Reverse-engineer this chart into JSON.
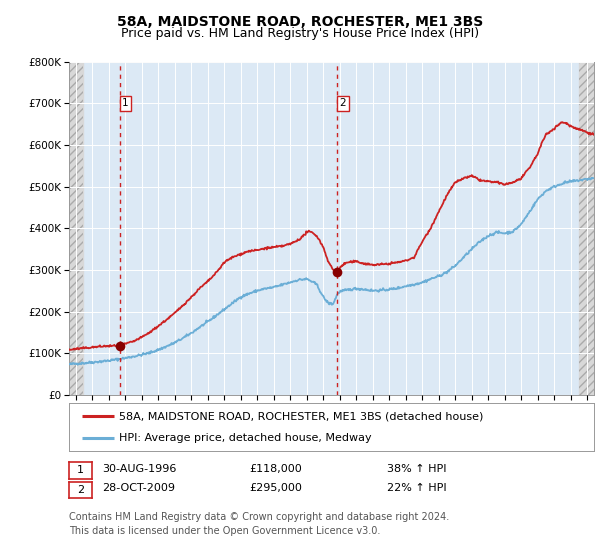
{
  "title": "58A, MAIDSTONE ROAD, ROCHESTER, ME1 3BS",
  "subtitle": "Price paid vs. HM Land Registry's House Price Index (HPI)",
  "ylim": [
    0,
    800000
  ],
  "yticks": [
    0,
    100000,
    200000,
    300000,
    400000,
    500000,
    600000,
    700000,
    800000
  ],
  "ytick_labels": [
    "£0",
    "£100K",
    "£200K",
    "£300K",
    "£400K",
    "£500K",
    "£600K",
    "£700K",
    "£800K"
  ],
  "xlim_start": 1993.6,
  "xlim_end": 2025.4,
  "background_color": "#ffffff",
  "plot_bg_color": "#dce9f5",
  "hatch_bg_color": "#d8d8d8",
  "grid_color": "#ffffff",
  "hpi_line_color": "#6baed6",
  "price_line_color": "#cc2222",
  "marker_color": "#880000",
  "sale1_x": 1996.67,
  "sale1_y": 118000,
  "sale2_x": 2009.83,
  "sale2_y": 295000,
  "vline_color": "#cc2222",
  "hatch_right_start": 2024.5,
  "legend_label1": "58A, MAIDSTONE ROAD, ROCHESTER, ME1 3BS (detached house)",
  "legend_label2": "HPI: Average price, detached house, Medway",
  "annotation1_date": "30-AUG-1996",
  "annotation1_price": "£118,000",
  "annotation1_hpi": "38% ↑ HPI",
  "annotation2_date": "28-OCT-2009",
  "annotation2_price": "£295,000",
  "annotation2_hpi": "22% ↑ HPI",
  "footer": "Contains HM Land Registry data © Crown copyright and database right 2024.\nThis data is licensed under the Open Government Licence v3.0.",
  "title_fontsize": 10,
  "subtitle_fontsize": 9,
  "tick_fontsize": 7.5,
  "legend_fontsize": 8,
  "annotation_fontsize": 8,
  "footer_fontsize": 7
}
